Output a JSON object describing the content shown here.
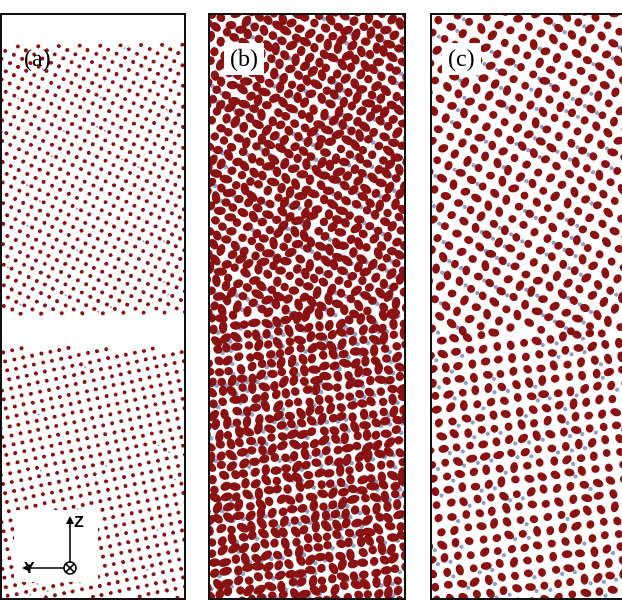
{
  "panels": [
    {
      "label": "(a)"
    },
    {
      "label": "(b)"
    },
    {
      "label": "(c)"
    }
  ],
  "axes": {
    "z": "Z",
    "y": "Y"
  },
  "colors": {
    "atom_primary": "#8b1212",
    "atom_secondary": "#8f9fc8",
    "frame": "#111111"
  }
}
